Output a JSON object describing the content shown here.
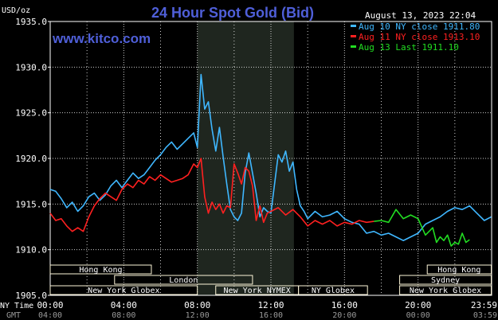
{
  "header": {
    "title": "24 Hour Spot Gold (Bid)",
    "ylabel": "USD/oz",
    "date": "August 13, 2023 22:04",
    "site": "www.kitco.com"
  },
  "legend": [
    {
      "label": "Aug 10 NY close 1911.80",
      "color": "#3fb7ff"
    },
    {
      "label": "Aug 11 NY close 1913.10",
      "color": "#ff2020"
    },
    {
      "label": "Aug 13 Last 1911.10",
      "color": "#22dd22"
    }
  ],
  "axis": {
    "ny_label": "NY Time",
    "gmt_label": "GMT",
    "ny_ticks": [
      "00:00",
      "04:00",
      "08:00",
      "12:00",
      "16:00",
      "20:00",
      "23:59"
    ],
    "gmt_ticks": [
      "04:00",
      "08:00",
      "12:00",
      "16:00",
      "20:00",
      "00:00",
      "03:59"
    ],
    "y_ticks": [
      "1935.0",
      "1930.0",
      "1925.0",
      "1920.0",
      "1915.0",
      "1910.0",
      "1905.0"
    ]
  },
  "markets": [
    {
      "label": "Hong Kong",
      "start": 0,
      "end": 5.5,
      "row": 0
    },
    {
      "label": "Hong Kong",
      "start": 20.5,
      "end": 23.98,
      "row": 0
    },
    {
      "label": "London",
      "start": 3.5,
      "end": 11.0,
      "row": 1
    },
    {
      "label": "Sydney",
      "start": 19.0,
      "end": 23.98,
      "row": 1
    },
    {
      "label": "New York Globex",
      "start": 0,
      "end": 8.0,
      "row": 2
    },
    {
      "label": "New York NYMEX",
      "start": 9.0,
      "end": 13.5,
      "row": 2
    },
    {
      "label": "NY Globex",
      "start": 13.5,
      "end": 17.25,
      "row": 2
    },
    {
      "label": "New York Globex",
      "start": 19.0,
      "end": 23.98,
      "row": 2
    }
  ],
  "colors": {
    "background": "#000000",
    "plot_grid": "#ffffff",
    "nymex_shade": "#1f261f",
    "title": "#4f5fd9",
    "market_box_fill": "#fdf6d8"
  },
  "chart_data": {
    "type": "line",
    "title": "24 Hour Spot Gold (Bid)",
    "xlabel": "NY Time",
    "ylabel": "USD/oz",
    "xlim": [
      0,
      24
    ],
    "ylim": [
      1905,
      1935
    ],
    "grid": true,
    "shaded_region_hours": [
      8,
      13.25
    ],
    "legend_position": "top-right",
    "series": [
      {
        "name": "Aug 10 NY close 1911.80",
        "color": "#3fb7ff",
        "x": [
          0,
          0.3,
          0.6,
          0.9,
          1.2,
          1.5,
          1.8,
          2.1,
          2.4,
          2.7,
          3.0,
          3.3,
          3.6,
          3.9,
          4.2,
          4.5,
          4.8,
          5.1,
          5.4,
          5.7,
          6.0,
          6.3,
          6.6,
          6.9,
          7.2,
          7.5,
          7.8,
          8.0,
          8.2,
          8.4,
          8.6,
          8.8,
          9.0,
          9.2,
          9.4,
          9.6,
          9.8,
          10.0,
          10.2,
          10.4,
          10.6,
          10.8,
          11.0,
          11.2,
          11.4,
          11.6,
          11.8,
          12.0,
          12.2,
          12.4,
          12.6,
          12.8,
          13.0,
          13.2,
          13.4,
          13.6,
          13.8,
          14.0,
          14.4,
          14.8,
          15.2,
          15.6,
          16.0,
          16.4,
          16.8,
          17.2,
          17.6,
          18.0,
          18.4,
          18.8,
          19.2,
          19.6,
          20.0,
          20.4,
          20.8,
          21.2,
          21.6,
          22.0,
          22.4,
          22.8,
          23.2,
          23.6,
          23.98
        ],
        "y": [
          1916.6,
          1916.4,
          1915.6,
          1914.6,
          1915.2,
          1914.2,
          1914.8,
          1915.8,
          1916.2,
          1915.4,
          1916.0,
          1917.0,
          1917.6,
          1916.8,
          1917.6,
          1918.4,
          1917.8,
          1918.2,
          1919.0,
          1919.8,
          1920.4,
          1921.2,
          1921.8,
          1921.0,
          1921.6,
          1922.2,
          1922.8,
          1921.2,
          1929.2,
          1925.4,
          1926.2,
          1923.2,
          1920.8,
          1923.4,
          1920.2,
          1917.2,
          1914.4,
          1913.6,
          1913.2,
          1914.0,
          1918.4,
          1920.6,
          1918.4,
          1916.2,
          1913.6,
          1914.6,
          1914.2,
          1914.0,
          1917.2,
          1920.4,
          1919.6,
          1920.8,
          1918.6,
          1919.6,
          1916.6,
          1914.8,
          1914.2,
          1913.4,
          1914.2,
          1913.6,
          1913.8,
          1914.2,
          1913.4,
          1913.0,
          1912.8,
          1911.8,
          1912.0,
          1911.6,
          1911.8,
          1911.4,
          1911.0,
          1911.4,
          1911.8,
          1912.8,
          1913.2,
          1913.6,
          1914.2,
          1914.6,
          1914.4,
          1914.8,
          1914.0,
          1913.2,
          1913.6
        ]
      },
      {
        "name": "Aug 11 NY close 1913.10",
        "color": "#ff2020",
        "x": [
          0,
          0.3,
          0.6,
          0.9,
          1.2,
          1.5,
          1.8,
          2.1,
          2.4,
          2.7,
          3.0,
          3.3,
          3.6,
          3.9,
          4.2,
          4.5,
          4.8,
          5.1,
          5.4,
          5.7,
          6.0,
          6.3,
          6.6,
          6.9,
          7.2,
          7.5,
          7.8,
          8.0,
          8.2,
          8.4,
          8.6,
          8.8,
          9.0,
          9.2,
          9.4,
          9.6,
          9.8,
          10.0,
          10.2,
          10.4,
          10.6,
          10.8,
          11.0,
          11.2,
          11.4,
          11.6,
          11.8,
          12.0,
          12.4,
          12.8,
          13.2,
          13.6,
          14.0,
          14.4,
          14.8,
          15.2,
          15.6,
          16.0,
          16.4,
          16.8,
          17.2,
          17.6
        ],
        "y": [
          1914.0,
          1913.2,
          1913.4,
          1912.6,
          1912.0,
          1912.4,
          1912.0,
          1913.6,
          1914.8,
          1915.6,
          1916.2,
          1915.8,
          1915.4,
          1916.6,
          1917.2,
          1916.8,
          1917.6,
          1917.2,
          1918.0,
          1917.6,
          1918.2,
          1917.8,
          1917.4,
          1917.6,
          1917.8,
          1918.2,
          1919.4,
          1919.0,
          1920.0,
          1915.8,
          1914.0,
          1915.2,
          1914.4,
          1915.0,
          1914.0,
          1914.8,
          1914.6,
          1919.4,
          1918.4,
          1917.2,
          1919.0,
          1918.6,
          1917.0,
          1913.2,
          1914.8,
          1913.0,
          1914.0,
          1914.2,
          1914.6,
          1913.8,
          1914.4,
          1913.6,
          1912.6,
          1913.2,
          1912.8,
          1913.2,
          1912.6,
          1913.0,
          1912.8,
          1913.2,
          1913.0,
          1913.1
        ]
      },
      {
        "name": "Aug 13 Last 1911.10",
        "color": "#22dd22",
        "x": [
          17.6,
          18.0,
          18.4,
          18.8,
          19.2,
          19.6,
          20.0,
          20.4,
          20.8,
          21.0,
          21.2,
          21.4,
          21.6,
          21.8,
          22.0,
          22.2,
          22.4,
          22.6,
          22.8
        ],
        "y": [
          1913.1,
          1913.2,
          1913.0,
          1914.4,
          1913.4,
          1913.8,
          1913.4,
          1911.6,
          1912.4,
          1910.8,
          1911.4,
          1911.0,
          1911.6,
          1910.4,
          1910.8,
          1910.6,
          1911.8,
          1910.8,
          1911.1
        ]
      }
    ]
  }
}
